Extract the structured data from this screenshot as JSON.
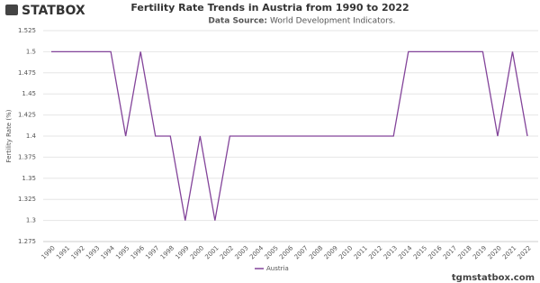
{
  "logo": "STATBOX",
  "footer": "tgmstatbox.com",
  "chart_data": {
    "type": "line",
    "title": "Fertility Rate Trends in Austria from 1990 to 2022",
    "subtitle_label": "Data Source:",
    "subtitle": "World Development Indicators.",
    "y_label": "Fertility Rate (%)",
    "categories": [
      "1990",
      "1991",
      "1992",
      "1993",
      "1994",
      "1995",
      "1996",
      "1997",
      "1998",
      "1999",
      "2000",
      "2001",
      "2002",
      "2003",
      "2004",
      "2005",
      "2006",
      "2007",
      "2008",
      "2009",
      "2010",
      "2011",
      "2012",
      "2013",
      "2014",
      "2015",
      "2016",
      "2017",
      "2018",
      "2019",
      "2020",
      "2021",
      "2022"
    ],
    "series": [
      {
        "name": "Austria",
        "color": "#83449a",
        "values": [
          1.5,
          1.5,
          1.5,
          1.5,
          1.5,
          1.4,
          1.5,
          1.4,
          1.4,
          1.3,
          1.4,
          1.3,
          1.4,
          1.4,
          1.4,
          1.4,
          1.4,
          1.4,
          1.4,
          1.4,
          1.4,
          1.4,
          1.4,
          1.4,
          1.5,
          1.5,
          1.5,
          1.5,
          1.5,
          1.5,
          1.4,
          1.5,
          1.4
        ]
      }
    ],
    "ylim": [
      1.275,
      1.525
    ],
    "yticks": [
      1.275,
      1.3,
      1.325,
      1.35,
      1.375,
      1.4,
      1.425,
      1.45,
      1.475,
      1.5,
      1.525
    ],
    "grid": true
  }
}
